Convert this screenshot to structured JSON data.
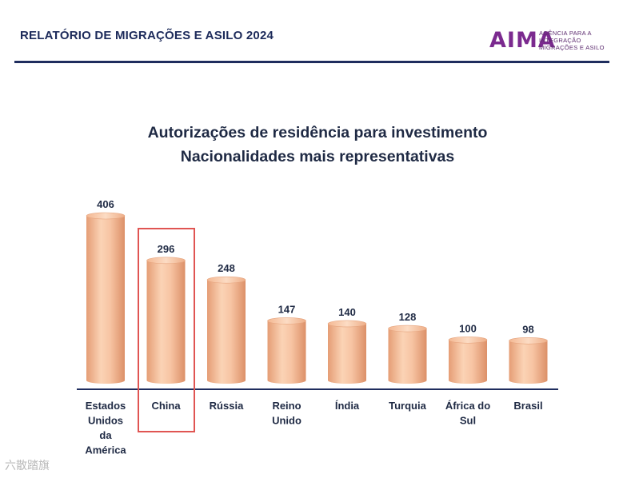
{
  "header": {
    "report_title": "RELATÓRIO DE MIGRAÇÕES E ASILO 2024",
    "logo_mark": "AIMA",
    "logo_lines": [
      "AGÊNCIA PARA A",
      "INTEGRAÇÃO",
      "MIGRAÇÕES E ASILO"
    ]
  },
  "colors": {
    "accent": "#1f2d5e",
    "bar": "#f3b892",
    "highlight": "#e05552"
  },
  "watermark": "六散踏旗",
  "chart_data": {
    "type": "bar",
    "title": "Autorizações de residência para investimento",
    "subtitle": "Nacionalidades mais representativas",
    "categories": [
      "Estados Unidos da América",
      "China",
      "Rússia",
      "Reino Unido",
      "Índia",
      "Turquia",
      "África do Sul",
      "Brasil"
    ],
    "category_lines": [
      [
        "Estados",
        "Unidos",
        "da",
        "América"
      ],
      [
        "China"
      ],
      [
        "Rússia"
      ],
      [
        "Reino",
        "Unido"
      ],
      [
        "Índia"
      ],
      [
        "Turquia"
      ],
      [
        "África do",
        "Sul"
      ],
      [
        "Brasil"
      ]
    ],
    "values": [
      406,
      296,
      248,
      147,
      140,
      128,
      100,
      98
    ],
    "highlighted_category": "China",
    "xlabel": "",
    "ylabel": "",
    "ylim": [
      0,
      406
    ],
    "grid": false,
    "legend": "none"
  }
}
